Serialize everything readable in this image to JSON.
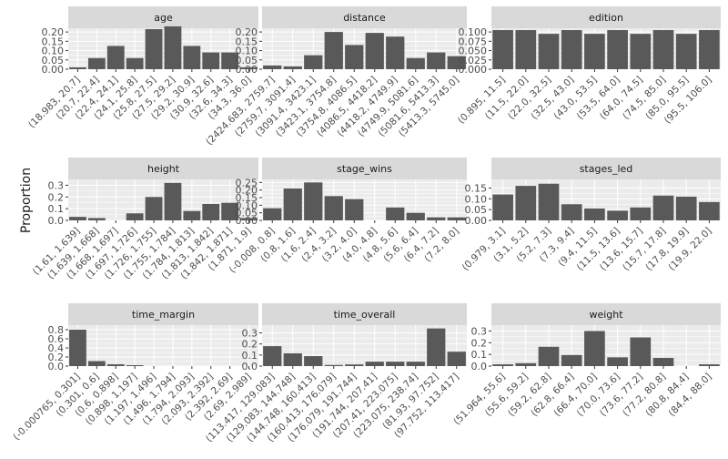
{
  "ylabel": "Proportion",
  "colors": {
    "bar": "#595959",
    "panel": "#ebebeb",
    "strip": "#d9d9d9",
    "grid": "#ffffff",
    "text": "#4d4d4d",
    "title": "#1a1a1a"
  },
  "chart_data": [
    {
      "type": "bar",
      "title": "age",
      "ylim": [
        0,
        0.22
      ],
      "yticks": [
        0,
        0.05,
        0.1,
        0.15,
        0.2
      ],
      "yfmt": 2,
      "categories": [
        "(18.983, 20.7]",
        "(20.7, 22.4]",
        "(22.4, 24.1]",
        "(24.1, 25.8]",
        "(25.8, 27.5]",
        "(27.5, 29.2]",
        "(29.2, 30.9]",
        "(30.9, 32.6]",
        "(32.6, 34.3]",
        "(34.3, 36.0]"
      ],
      "values": [
        0.01,
        0.06,
        0.125,
        0.06,
        0.215,
        0.23,
        0.125,
        0.09,
        0.09,
        0.01
      ]
    },
    {
      "type": "bar",
      "title": "distance",
      "ylim": [
        0,
        0.22
      ],
      "yticks": [
        0,
        0.05,
        0.1,
        0.15,
        0.2
      ],
      "yfmt": 2,
      "categories": [
        "(2424.683, 2759.7]",
        "(2759.7, 3091.4]",
        "(3091.4, 3423.1]",
        "(3423.1, 3754.8]",
        "(3754.8, 4086.5]",
        "(4086.5, 4418.2]",
        "(4418.2, 4749.9]",
        "(4749.9, 5081.6]",
        "(5081.6, 5413.3]",
        "(5413.3, 5745.0]"
      ],
      "values": [
        0.02,
        0.015,
        0.075,
        0.2,
        0.13,
        0.195,
        0.175,
        0.06,
        0.09,
        0.07
      ]
    },
    {
      "type": "bar",
      "title": "edition",
      "ylim": [
        0,
        0.11
      ],
      "yticks": [
        0,
        0.025,
        0.05,
        0.075,
        0.1
      ],
      "yfmt": 3,
      "categories": [
        "(0.895, 11.5]",
        "(11.5, 22.0]",
        "(22.0, 32.5]",
        "(32.5, 43.0]",
        "(43.0, 53.5]",
        "(53.5, 64.0]",
        "(64.0, 74.5]",
        "(74.5, 85.0]",
        "(85.0, 95.5]",
        "(95.5, 106.0]"
      ],
      "values": [
        0.105,
        0.105,
        0.095,
        0.105,
        0.095,
        0.105,
        0.095,
        0.105,
        0.095,
        0.105
      ]
    },
    {
      "type": "bar",
      "title": "height",
      "ylim": [
        0,
        0.35
      ],
      "yticks": [
        0,
        0.1,
        0.2,
        0.3
      ],
      "yfmt": 1,
      "categories": [
        "(1.61, 1.639]",
        "(1.639, 1.668]",
        "(1.668, 1.697]",
        "(1.697, 1.726]",
        "(1.726, 1.755]",
        "(1.755, 1.784]",
        "(1.784, 1.813]",
        "(1.813, 1.842]",
        "(1.842, 1.871]",
        "(1.871, 1.9]"
      ],
      "values": [
        0.03,
        0.02,
        0,
        0.06,
        0.2,
        0.32,
        0.08,
        0.14,
        0.15,
        0.02
      ]
    },
    {
      "type": "bar",
      "title": "stage_wins",
      "ylim": [
        0,
        0.27
      ],
      "yticks": [
        0,
        0.05,
        0.1,
        0.15,
        0.2,
        0.25
      ],
      "yfmt": 2,
      "categories": [
        "(-0.008, 0.8]",
        "(0.8, 1.6]",
        "(1.6, 2.4]",
        "(2.4, 3.2]",
        "(3.2, 4.0]",
        "(4.0, 4.8]",
        "(4.8, 5.6]",
        "(5.6, 6.4]",
        "(6.4, 7.2]",
        "(7.2, 8.0]"
      ],
      "values": [
        0.08,
        0.21,
        0.25,
        0.16,
        0.14,
        0,
        0.085,
        0.05,
        0.02,
        0.02
      ]
    },
    {
      "type": "bar",
      "title": "stages_led",
      "ylim": [
        0,
        0.19
      ],
      "yticks": [
        0,
        0.05,
        0.1,
        0.15
      ],
      "yfmt": 2,
      "categories": [
        "(0.979, 3.1]",
        "(3.1, 5.2]",
        "(5.2, 7.3]",
        "(7.3, 9.4]",
        "(9.4, 11.5]",
        "(11.5, 13.6]",
        "(13.6, 15.7]",
        "(15.7, 17.8]",
        "(17.8, 19.9]",
        "(19.9, 22.0]"
      ],
      "values": [
        0.12,
        0.16,
        0.17,
        0.075,
        0.055,
        0.045,
        0.06,
        0.115,
        0.11,
        0.085
      ]
    },
    {
      "type": "bar",
      "title": "time_margin",
      "ylim": [
        0,
        0.9
      ],
      "yticks": [
        0,
        0.2,
        0.4,
        0.6,
        0.8
      ],
      "yfmt": 1,
      "categories": [
        "(-0.000765, 0.301]",
        "(0.301, 0.6]",
        "(0.6, 0.898]",
        "(0.898, 1.197]",
        "(1.197, 1.496]",
        "(1.496, 1.794]",
        "(1.794, 2.093]",
        "(2.093, 2.392]",
        "(2.392, 2.69]",
        "(2.69, 2.989]"
      ],
      "values": [
        0.8,
        0.11,
        0.04,
        0.02,
        0,
        0,
        0,
        0,
        0,
        0
      ]
    },
    {
      "type": "bar",
      "title": "time_overall",
      "ylim": [
        0,
        0.37
      ],
      "yticks": [
        0,
        0.1,
        0.2,
        0.3
      ],
      "yfmt": 1,
      "categories": [
        "(113.417, 129.083]",
        "(129.083, 144.748]",
        "(144.748, 160.413]",
        "(160.413, 176.079]",
        "(176.079, 191.744]",
        "(191.744, 207.41]",
        "(207.41, 223.075]",
        "(223.075, 238.74]",
        "(81.93, 97.752]",
        "(97.752, 113.417]"
      ],
      "values": [
        0.18,
        0.115,
        0.09,
        0.01,
        0.015,
        0.04,
        0.04,
        0.04,
        0.34,
        0.13
      ]
    },
    {
      "type": "bar",
      "title": "weight",
      "ylim": [
        0,
        0.35
      ],
      "yticks": [
        0,
        0.1,
        0.2,
        0.3
      ],
      "yfmt": 1,
      "categories": [
        "(51.964, 55.6]",
        "(55.6, 59.2]",
        "(59.2, 62.8]",
        "(62.8, 66.4]",
        "(66.4, 70.0]",
        "(70.0, 73.6]",
        "(73.6, 77.2]",
        "(77.2, 80.8]",
        "(80.8, 84.4]",
        "(84.4, 88.0]"
      ],
      "values": [
        0.015,
        0.025,
        0.165,
        0.095,
        0.3,
        0.075,
        0.245,
        0.07,
        0,
        0.015
      ]
    }
  ]
}
